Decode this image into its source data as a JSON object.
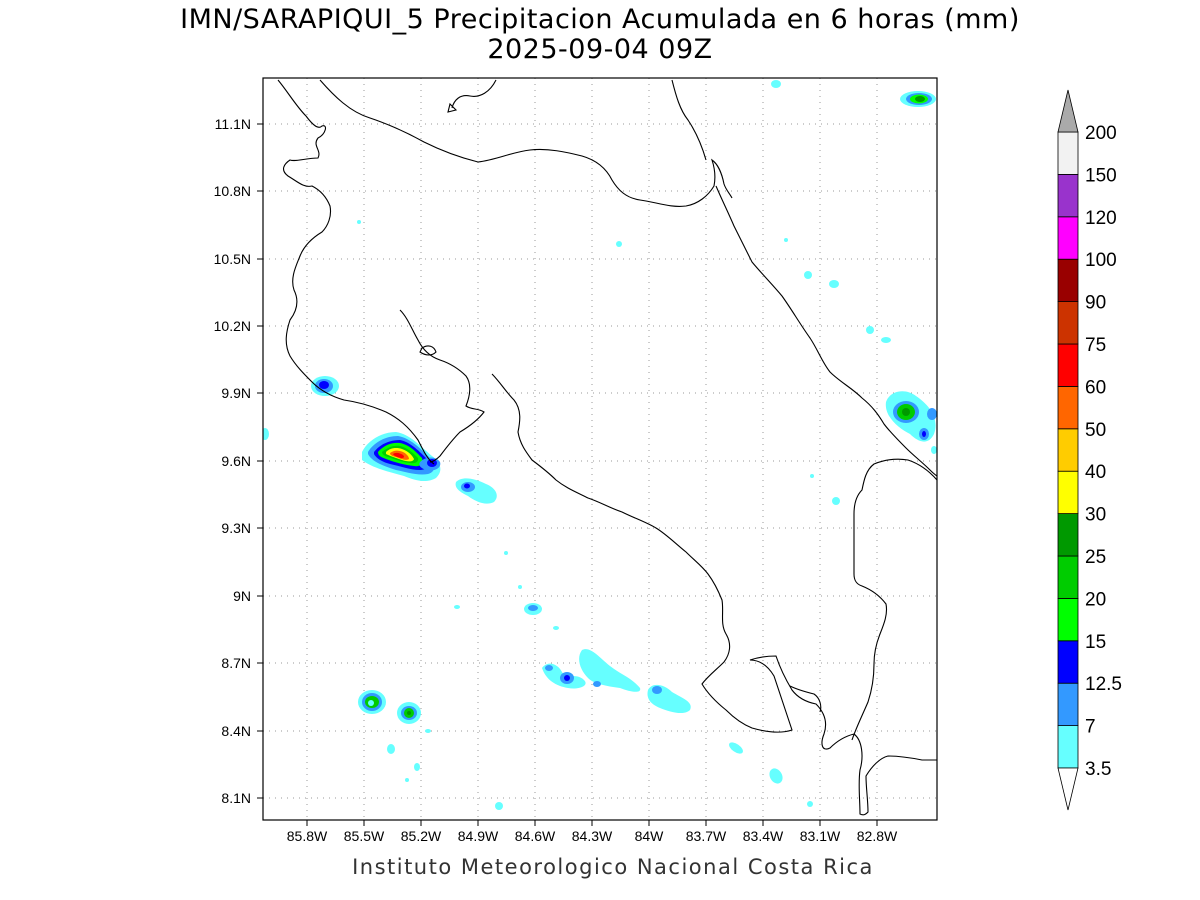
{
  "title_line1": "IMN/SARAPIQUI_5 Precipitacion Acumulada en 6 horas (mm)",
  "title_line2": "2025-09-04 09Z",
  "footer": "Instituto Meteorologico Nacional Costa Rica",
  "lat_labels": [
    "11.1N",
    "10.8N",
    "10.5N",
    "10.2N",
    "9.9N",
    "9.6N",
    "9.3N",
    "9N",
    "8.7N",
    "8.4N",
    "8.1N"
  ],
  "lon_labels": [
    "85.8W",
    "85.5W",
    "85.2W",
    "84.9W",
    "84.6W",
    "84.3W",
    "84W",
    "83.7W",
    "83.4W",
    "83.1W",
    "82.8W"
  ],
  "colorbar": {
    "labels": [
      "3.5",
      "7",
      "12.5",
      "15",
      "20",
      "25",
      "30",
      "40",
      "50",
      "60",
      "75",
      "90",
      "100",
      "120",
      "150",
      "200"
    ],
    "colors": [
      "#66ffff",
      "#3399ff",
      "#0000ff",
      "#00ff00",
      "#00cc00",
      "#009900",
      "#ffff00",
      "#ffcc00",
      "#ff6600",
      "#ff0000",
      "#cc3300",
      "#990000",
      "#ff00ff",
      "#9933cc",
      "#f2f2f2",
      "#aaaaaa"
    ]
  }
}
